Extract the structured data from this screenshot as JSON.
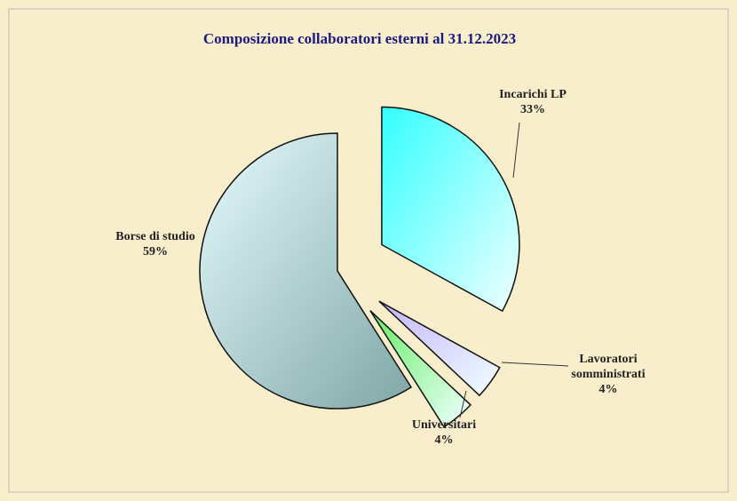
{
  "chart_data": {
    "type": "pie",
    "title": "Composizione collaboratori esterni al 31.12.2023",
    "categories": [
      "Incarichi LP",
      "Lavoratori somministrati",
      "Universitari",
      "Borse di studio"
    ],
    "values": [
      33,
      4,
      4,
      59
    ],
    "value_labels": [
      "33%",
      "4%",
      "4%",
      "59%"
    ],
    "colors": [
      "#33ffff",
      "#c4b4ff",
      "#66ee66",
      "#cdeef2"
    ]
  }
}
